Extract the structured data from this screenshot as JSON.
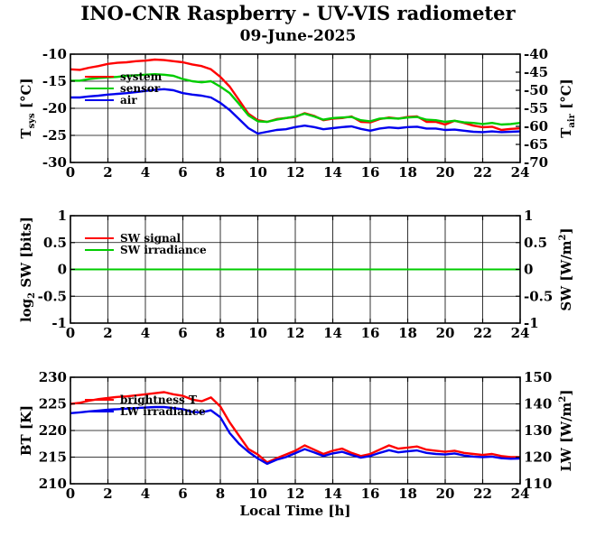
{
  "title": "INO-CNR Raspberry - UV-VIS radiometer",
  "subtitle": "09-June-2025",
  "xlabel": "Local Time [h]",
  "chart_data": [
    {
      "type": "line",
      "xlim": [
        0,
        24
      ],
      "xticks": [
        0,
        2,
        4,
        6,
        8,
        10,
        12,
        14,
        16,
        18,
        20,
        22,
        24
      ],
      "ylabel_left": {
        "main": "T",
        "sub": "sys",
        "unit": " [°C]"
      },
      "ylim_left": [
        -30,
        -10
      ],
      "yticks_left": [
        -30,
        -25,
        -20,
        -15,
        -10
      ],
      "ylabel_right": {
        "main": "T",
        "sub": "air",
        "unit": " [°C]"
      },
      "ylim_right": [
        -70,
        -40
      ],
      "yticks_right": [
        -70,
        -65,
        -60,
        -55,
        -50,
        -45,
        -40
      ],
      "grid": true,
      "legend": "top-left",
      "series": [
        {
          "name": "system",
          "color": "#ff0000",
          "axis": "left",
          "x": [
            0,
            0.5,
            1,
            1.5,
            2,
            2.5,
            3,
            3.5,
            4,
            4.5,
            5,
            5.5,
            6,
            6.5,
            7,
            7.5,
            8,
            8.5,
            9,
            9.5,
            10,
            10.5,
            11,
            11.5,
            12,
            12.5,
            13,
            13.5,
            14,
            14.5,
            15,
            15.5,
            16,
            16.5,
            17,
            17.5,
            18,
            18.5,
            19,
            19.5,
            20,
            20.5,
            21,
            21.5,
            22,
            22.5,
            23,
            23.5,
            24
          ],
          "y": [
            -12.8,
            -12.9,
            -12.5,
            -12.2,
            -11.8,
            -11.6,
            -11.5,
            -11.3,
            -11.2,
            -11.0,
            -11.1,
            -11.3,
            -11.5,
            -11.9,
            -12.2,
            -12.8,
            -14.2,
            -16.0,
            -18.5,
            -21.0,
            -22.2,
            -22.5,
            -22.0,
            -21.8,
            -21.6,
            -20.9,
            -21.4,
            -22.2,
            -21.9,
            -21.8,
            -21.5,
            -22.5,
            -22.6,
            -22.0,
            -21.7,
            -21.9,
            -21.6,
            -21.5,
            -22.5,
            -22.5,
            -23.0,
            -22.3,
            -22.7,
            -23.2,
            -23.5,
            -23.4,
            -24.0,
            -23.8,
            -23.7
          ]
        },
        {
          "name": "sensor",
          "color": "#00cc00",
          "axis": "left",
          "x": [
            0,
            0.5,
            1,
            1.5,
            2,
            2.5,
            3,
            3.5,
            4,
            4.5,
            5,
            5.5,
            6,
            6.5,
            7,
            7.5,
            8,
            8.5,
            9,
            9.5,
            10,
            10.5,
            11,
            11.5,
            12,
            12.5,
            13,
            13.5,
            14,
            14.5,
            15,
            15.5,
            16,
            16.5,
            17,
            17.5,
            18,
            18.5,
            19,
            19.5,
            20,
            20.5,
            21,
            21.5,
            22,
            22.5,
            23,
            23.5,
            24
          ],
          "y": [
            -14.9,
            -14.9,
            -14.6,
            -14.4,
            -14.3,
            -14.2,
            -14.0,
            -13.9,
            -13.8,
            -13.7,
            -13.8,
            -14.0,
            -14.6,
            -15.0,
            -15.2,
            -15.0,
            -16.0,
            -17.2,
            -19.2,
            -21.3,
            -22.4,
            -22.5,
            -22.1,
            -21.8,
            -21.5,
            -21.0,
            -21.5,
            -22.1,
            -21.8,
            -21.7,
            -21.6,
            -22.2,
            -22.4,
            -21.9,
            -21.8,
            -21.9,
            -21.7,
            -21.6,
            -22.1,
            -22.2,
            -22.5,
            -22.3,
            -22.6,
            -22.7,
            -22.9,
            -22.7,
            -23.0,
            -22.9,
            -22.7
          ]
        },
        {
          "name": "air",
          "color": "#0000ee",
          "axis": "right",
          "x": [
            0,
            0.5,
            1,
            1.5,
            2,
            2.5,
            3,
            3.5,
            4,
            4.5,
            5,
            5.5,
            6,
            6.5,
            7,
            7.5,
            8,
            8.5,
            9,
            9.5,
            10,
            10.5,
            11,
            11.5,
            12,
            12.5,
            13,
            13.5,
            14,
            14.5,
            15,
            15.5,
            16,
            16.5,
            17,
            17.5,
            18,
            18.5,
            19,
            19.5,
            20,
            20.5,
            21,
            21.5,
            22,
            22.5,
            23,
            23.5,
            24
          ],
          "y": [
            -52.0,
            -52.0,
            -51.7,
            -51.5,
            -51.2,
            -51.0,
            -50.8,
            -50.5,
            -50.2,
            -49.9,
            -49.7,
            -50.0,
            -50.8,
            -51.2,
            -51.5,
            -52.0,
            -53.5,
            -55.5,
            -58.0,
            -60.5,
            -62.0,
            -61.5,
            -61.0,
            -60.8,
            -60.2,
            -59.8,
            -60.2,
            -60.8,
            -60.5,
            -60.2,
            -60.0,
            -60.7,
            -61.2,
            -60.6,
            -60.3,
            -60.5,
            -60.2,
            -60.1,
            -60.6,
            -60.6,
            -61.0,
            -60.9,
            -61.2,
            -61.5,
            -61.6,
            -61.4,
            -61.6,
            -61.5,
            -61.4
          ]
        }
      ]
    },
    {
      "type": "line",
      "xlim": [
        0,
        24
      ],
      "xticks": [
        0,
        2,
        4,
        6,
        8,
        10,
        12,
        14,
        16,
        18,
        20,
        22,
        24
      ],
      "ylabel_left": {
        "pre": "log",
        "sub": "2",
        "unit": " SW [bits]"
      },
      "ylim_left": [
        -1,
        1
      ],
      "yticks_left": [
        -1,
        -0.5,
        0,
        0.5,
        1
      ],
      "ylabel_right": {
        "pre": "SW [W/m",
        "sup": "2",
        "unit": "]"
      },
      "ylim_right": [
        -1,
        1
      ],
      "yticks_right": [
        -1,
        -0.5,
        0,
        0.5,
        1
      ],
      "grid": true,
      "legend": "top-left",
      "series": [
        {
          "name": "SW signal",
          "color": "#ff0000",
          "axis": "left",
          "x": [
            0,
            24
          ],
          "y": [
            0,
            0
          ]
        },
        {
          "name": "SW irradiance",
          "color": "#00cc00",
          "axis": "right",
          "x": [
            0,
            24
          ],
          "y": [
            0,
            0
          ]
        }
      ]
    },
    {
      "type": "line",
      "xlim": [
        0,
        24
      ],
      "xticks": [
        0,
        2,
        4,
        6,
        8,
        10,
        12,
        14,
        16,
        18,
        20,
        22,
        24
      ],
      "ylabel_left": {
        "pre": "BT [K]"
      },
      "ylim_left": [
        210,
        230
      ],
      "yticks_left": [
        210,
        215,
        220,
        225,
        230
      ],
      "ylabel_right": {
        "pre": "LW [W/m",
        "sup": "2",
        "unit": "]"
      },
      "ylim_right": [
        110,
        150
      ],
      "yticks_right": [
        110,
        120,
        130,
        140,
        150
      ],
      "grid": true,
      "legend": "top-left",
      "series": [
        {
          "name": "brightness T",
          "color": "#ff0000",
          "axis": "left",
          "x": [
            0,
            0.5,
            1,
            1.5,
            2,
            2.5,
            3,
            3.5,
            4,
            4.5,
            5,
            5.5,
            6,
            6.5,
            7,
            7.5,
            8,
            8.5,
            9,
            9.5,
            10,
            10.5,
            11,
            11.5,
            12,
            12.5,
            13,
            13.5,
            14,
            14.5,
            15,
            15.5,
            16,
            16.5,
            17,
            17.5,
            18,
            18.5,
            19,
            19.5,
            20,
            20.5,
            21,
            21.5,
            22,
            22.5,
            23,
            23.5,
            24
          ],
          "y": [
            225.0,
            225.2,
            225.6,
            225.9,
            226.1,
            226.3,
            226.4,
            226.6,
            226.8,
            227.0,
            227.2,
            226.8,
            226.5,
            225.8,
            225.5,
            226.2,
            224.5,
            221.5,
            219.0,
            216.5,
            215.5,
            214.0,
            214.8,
            215.5,
            216.2,
            217.2,
            216.4,
            215.6,
            216.2,
            216.6,
            215.8,
            215.2,
            215.6,
            216.4,
            217.2,
            216.6,
            216.8,
            217.0,
            216.4,
            216.2,
            216.0,
            216.2,
            215.8,
            215.6,
            215.4,
            215.6,
            215.2,
            215.0,
            215.0
          ]
        },
        {
          "name": "LW irradiance",
          "color": "#0000ee",
          "axis": "right",
          "x": [
            0,
            0.5,
            1,
            1.5,
            2,
            2.5,
            3,
            3.5,
            4,
            4.5,
            5,
            5.5,
            6,
            6.5,
            7,
            7.5,
            8,
            8.5,
            9,
            9.5,
            10,
            10.5,
            11,
            11.5,
            12,
            12.5,
            13,
            13.5,
            14,
            14.5,
            15,
            15.5,
            16,
            16.5,
            17,
            17.5,
            18,
            18.5,
            19,
            19.5,
            20,
            20.5,
            21,
            21.5,
            22,
            22.5,
            23,
            23.5,
            24
          ],
          "y": [
            136.5,
            136.8,
            137.2,
            137.5,
            137.8,
            138.0,
            138.2,
            138.4,
            138.6,
            138.8,
            138.8,
            138.4,
            138.0,
            137.0,
            136.8,
            137.6,
            135.0,
            129.0,
            125.0,
            122.0,
            119.5,
            117.5,
            119.0,
            120.0,
            121.5,
            123.0,
            121.8,
            120.4,
            121.4,
            122.0,
            120.8,
            119.8,
            120.4,
            121.6,
            122.6,
            121.8,
            122.2,
            122.5,
            121.6,
            121.2,
            121.0,
            121.4,
            120.6,
            120.2,
            120.0,
            120.2,
            119.6,
            119.4,
            119.5
          ]
        }
      ]
    }
  ]
}
